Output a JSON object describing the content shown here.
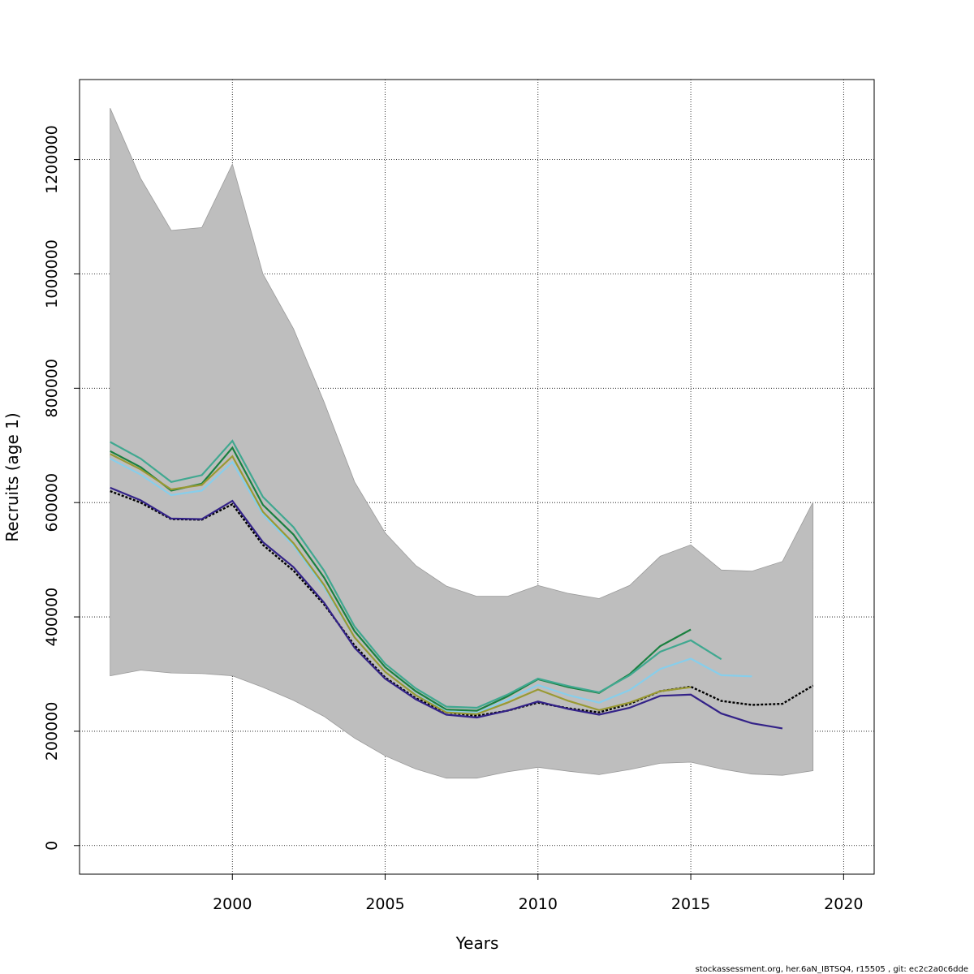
{
  "chart_data": {
    "type": "line",
    "xlabel": "Years",
    "ylabel": "Recruits (age 1)",
    "xlim": [
      1995,
      2021
    ],
    "ylim": [
      -50000,
      1340000
    ],
    "x_ticks": [
      2000,
      2005,
      2010,
      2015,
      2020
    ],
    "x_tick_labels": [
      "2000",
      "2005",
      "2010",
      "2015",
      "2020"
    ],
    "y_ticks": [
      0,
      200000,
      400000,
      600000,
      800000,
      1000000,
      1200000
    ],
    "y_tick_labels": [
      "0",
      "200000",
      "400000",
      "600000",
      "800000",
      "1000000",
      "1200000"
    ],
    "grid": true,
    "confidence_band": {
      "x": [
        1996,
        1997,
        1998,
        1999,
        2000,
        2001,
        2002,
        2003,
        2004,
        2005,
        2006,
        2007,
        2008,
        2009,
        2010,
        2011,
        2012,
        2013,
        2014,
        2015,
        2016,
        2017,
        2018,
        2019
      ],
      "lower": [
        297000,
        307000,
        302000,
        301000,
        297000,
        277000,
        254000,
        226000,
        188000,
        157000,
        134000,
        118000,
        118000,
        129000,
        137000,
        130000,
        124000,
        133000,
        144000,
        146000,
        134000,
        125000,
        123000,
        131000
      ],
      "upper": [
        1290000,
        1167000,
        1076000,
        1081000,
        1192000,
        1000000,
        904000,
        776000,
        636000,
        547000,
        490000,
        454000,
        436000,
        436000,
        455000,
        441000,
        432000,
        455000,
        506000,
        526000,
        482000,
        480000,
        497000,
        601000
      ],
      "color": "#bebebe"
    },
    "series": [
      {
        "color": "#000000",
        "dashed": true,
        "x": [
          1996,
          1997,
          1998,
          1999,
          2000,
          2001,
          2002,
          2003,
          2004,
          2005,
          2006,
          2007,
          2008,
          2009,
          2010,
          2011,
          2012,
          2013,
          2014,
          2015,
          2016,
          2017,
          2018,
          2019
        ],
        "values": [
          620000,
          600000,
          571000,
          570000,
          597000,
          526000,
          481000,
          422000,
          350000,
          294000,
          258000,
          233000,
          227000,
          236000,
          250000,
          240000,
          233000,
          248000,
          270000,
          278000,
          253000,
          246000,
          248000,
          280000
        ]
      },
      {
        "color": "#1a8040",
        "x": [
          1996,
          1997,
          1998,
          1999,
          2000,
          2001,
          2002,
          2003,
          2004,
          2005,
          2006,
          2007,
          2008,
          2009,
          2010,
          2011,
          2012,
          2013,
          2014,
          2015
        ],
        "values": [
          690000,
          662000,
          621000,
          633000,
          696000,
          596000,
          544000,
          469000,
          375000,
          312000,
          270000,
          238000,
          236000,
          261000,
          291000,
          277000,
          267000,
          300000,
          349000,
          378000
        ]
      },
      {
        "color": "#40a890",
        "x": [
          1996,
          1997,
          1998,
          1999,
          2000,
          2001,
          2002,
          2003,
          2004,
          2005,
          2006,
          2007,
          2008,
          2009,
          2010,
          2011,
          2012,
          2013,
          2014,
          2015,
          2016
        ],
        "values": [
          706000,
          677000,
          636000,
          648000,
          708000,
          610000,
          557000,
          481000,
          383000,
          318000,
          275000,
          243000,
          241000,
          264000,
          292000,
          279000,
          268000,
          298000,
          339000,
          359000,
          326000
        ]
      },
      {
        "color": "#87ceeb",
        "x": [
          1996,
          1997,
          1998,
          1999,
          2000,
          2001,
          2002,
          2003,
          2004,
          2005,
          2006,
          2007,
          2008,
          2009,
          2010,
          2011,
          2012,
          2013,
          2014,
          2015,
          2016,
          2017
        ],
        "values": [
          677000,
          649000,
          613000,
          621000,
          671000,
          579000,
          525000,
          452000,
          364000,
          304000,
          264000,
          235000,
          232000,
          255000,
          281000,
          263000,
          250000,
          272000,
          309000,
          327000,
          298000,
          296000
        ]
      },
      {
        "color": "#999933",
        "x": [
          1996,
          1997,
          1998,
          1999,
          2000,
          2001,
          2002,
          2003,
          2004,
          2005,
          2006,
          2007,
          2008,
          2009,
          2010,
          2011,
          2012,
          2013,
          2014,
          2015
        ],
        "values": [
          685000,
          658000,
          623000,
          631000,
          681000,
          584000,
          529000,
          456000,
          364000,
          304000,
          263000,
          233000,
          230000,
          250000,
          273000,
          253000,
          237000,
          250000,
          270000,
          277000
        ]
      },
      {
        "color": "#332288",
        "x": [
          1996,
          1997,
          1998,
          1999,
          2000,
          2001,
          2002,
          2003,
          2004,
          2005,
          2006,
          2007,
          2008,
          2009,
          2010,
          2011,
          2012,
          2013,
          2014,
          2015,
          2016,
          2017,
          2018
        ],
        "values": [
          626000,
          604000,
          572000,
          571000,
          603000,
          531000,
          487000,
          425000,
          346000,
          292000,
          256000,
          229000,
          224000,
          236000,
          252000,
          239000,
          229000,
          241000,
          262000,
          264000,
          231000,
          214000,
          205000
        ]
      }
    ]
  },
  "footer": {
    "note": "stockassessment.org, her.6aN_IBTSQ4, r15505 , git: ec2c2a0c6dde"
  }
}
